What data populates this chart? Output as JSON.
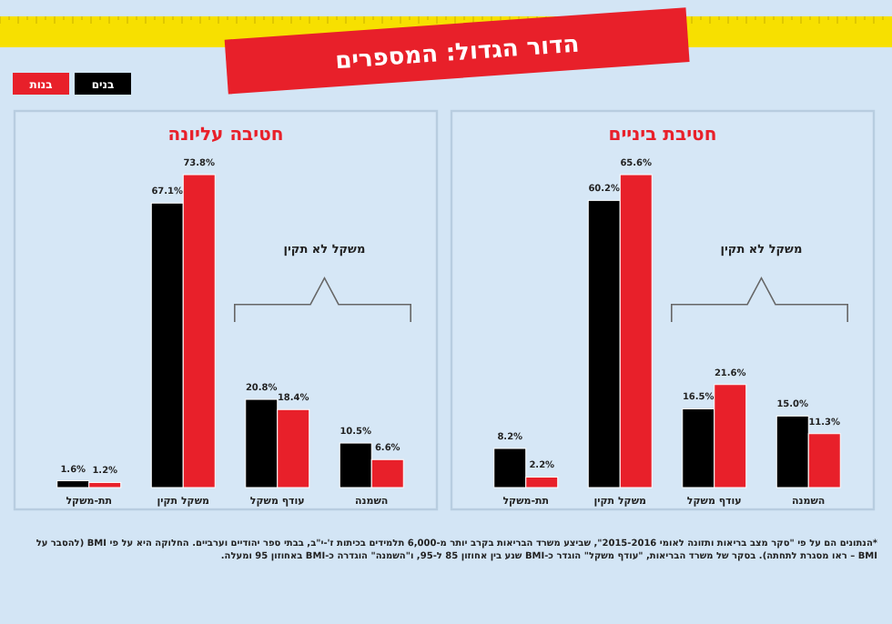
{
  "chart_data": [
    {
      "type": "bar",
      "title": "חטיבת ביניים",
      "categories": [
        "תת-משקל",
        "משקל תקין",
        "עודף משקל",
        "השמנה"
      ],
      "series": [
        {
          "name": "בנים",
          "color": "#000000",
          "values": [
            8.2,
            60.2,
            16.5,
            15.0
          ],
          "value_labels": [
            "8.2%",
            "60.2%",
            "16.5%",
            "15.0%"
          ]
        },
        {
          "name": "בנות",
          "color": "#e8202a",
          "values": [
            2.2,
            65.6,
            21.6,
            11.3
          ],
          "value_labels": [
            "2.2%",
            "65.6%",
            "21.6%",
            "11.3%"
          ]
        }
      ],
      "legend": "top left",
      "annotations": [
        "משקל לא תקין",
        "הדור הגדול: המספרים",
        "*הנתונים הם על פי \"סקר מצב בריאות ותזונה לאומי 2015-2016\", שביצע משרד הבריאות בקרב יותר מ-6,000 תלמידים בכיתות ז'-י\"ב, בבתי ספר יהודיים וערביים. החלוקה היא על פי BMI (להסבר על BMI – ראו מסגרת לתחתה). בסקר של משרד הבריאות, \"עודף משקל\" הוגדר כ-BMI שנע בין אחוזון 85 ל-95, ו\"השמנה\" הוגדרה כ-BMI באחוזון 95 ומעלה."
      ]
    },
    {
      "type": "bar",
      "title": "חטיבה עליונה",
      "categories": [
        "תת-משקל",
        "משקל תקין",
        "עודף משקל",
        "השמנה"
      ],
      "series": [
        {
          "color": "#000000",
          "values": [
            1.6,
            67.1,
            20.8,
            10.5
          ],
          "value_labels": [
            "1.6%",
            "67.1%",
            "20.8%",
            "10.5%"
          ]
        },
        {
          "color": "#e8202a",
          "values": [
            1.2,
            73.8,
            18.4,
            6.6
          ],
          "value_labels": [
            "1.2%",
            "73.8%",
            "18.4%",
            "6.6%"
          ]
        }
      ],
      "annotations": [
        "משקל לא תקין"
      ]
    }
  ]
}
